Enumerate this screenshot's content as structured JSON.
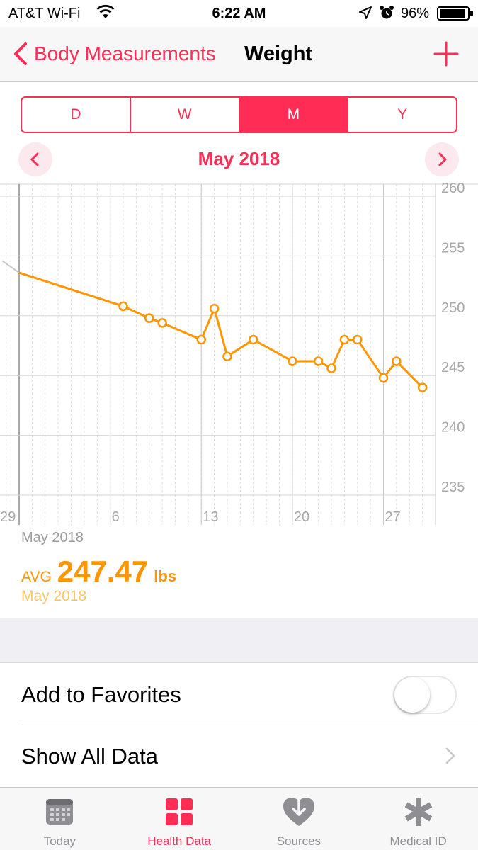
{
  "status": {
    "carrier": "AT&T Wi-Fi",
    "time": "6:22 AM",
    "battery": "96%",
    "battery_level": 0.96
  },
  "nav": {
    "back_label": "Body Measurements",
    "title": "Weight"
  },
  "segments": [
    "D",
    "W",
    "M",
    "Y"
  ],
  "segment_selected": "M",
  "period": "May 2018",
  "chart_data": {
    "type": "line",
    "y_ticks": [
      "260",
      "255",
      "250",
      "245",
      "240",
      "235"
    ],
    "x_ticks": [
      "29",
      "6",
      "13",
      "20",
      "27"
    ],
    "ylim": [
      235,
      260
    ],
    "xlim": [
      0,
      32
    ],
    "x_note": "day index: 0 = Apr 29 ... 31 = May 30",
    "leading_point": {
      "x": -1.3,
      "y": 254.6
    },
    "x": [
      0,
      8,
      10,
      11,
      14,
      15,
      16,
      18,
      21,
      23,
      24,
      25,
      26,
      28,
      29,
      31
    ],
    "y": [
      253.6,
      250.8,
      249.8,
      249.4,
      248.0,
      250.6,
      246.6,
      248.0,
      246.2,
      246.2,
      245.6,
      248.0,
      248.0,
      244.8,
      246.2,
      244.0
    ],
    "markers_from_index": 1,
    "line_color": "#ff9500"
  },
  "summary": {
    "label": "May 2018",
    "avg_prefix": "AVG",
    "avg_value": "247.47",
    "unit": "lbs",
    "period": "May 2018"
  },
  "rows": {
    "favorites": "Add to Favorites",
    "show_all": "Show All Data"
  },
  "tabs": [
    {
      "label": "Today",
      "icon": "calendar-icon"
    },
    {
      "label": "Health Data",
      "icon": "grid-icon"
    },
    {
      "label": "Sources",
      "icon": "heart-download-icon"
    },
    {
      "label": "Medical ID",
      "icon": "asterisk-icon"
    }
  ],
  "colors": {
    "accent": "#ff2d55",
    "series": "#ff9500"
  }
}
